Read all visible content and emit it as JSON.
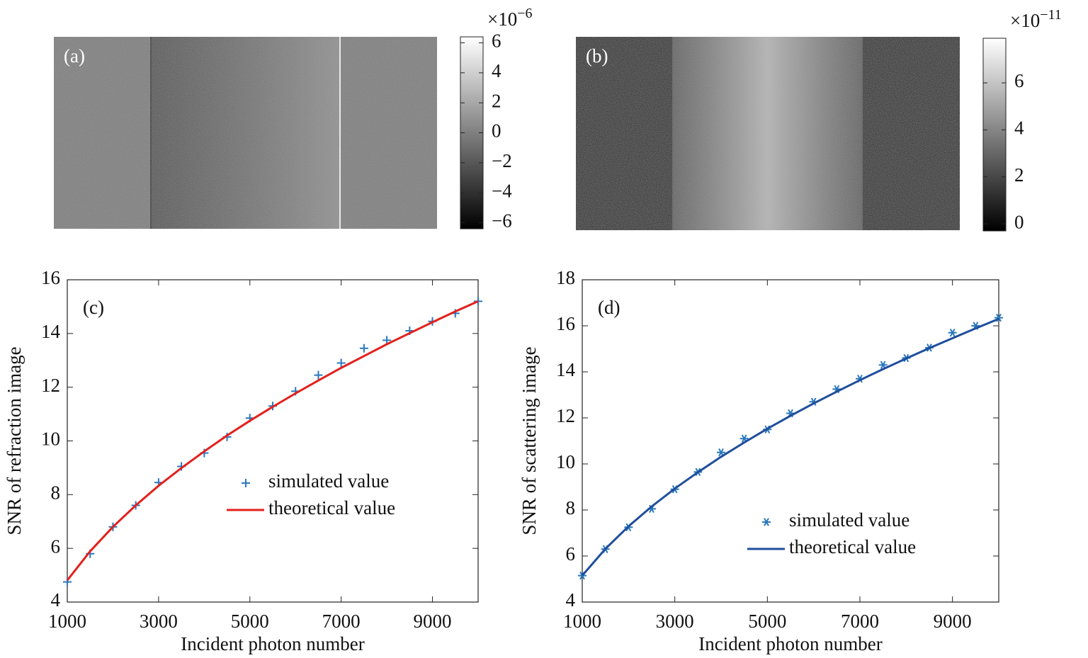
{
  "chart_data": [
    {
      "type": "image",
      "annotation": "(a)",
      "colorbar": {
        "lim": [
          -6.4,
          6.4
        ],
        "multiplier": "×10",
        "exponent": "−6",
        "ticks": [
          {
            "value": -6,
            "label": "−6"
          },
          {
            "value": -4,
            "label": "−4"
          },
          {
            "value": -2,
            "label": "−2"
          },
          0,
          2,
          4,
          6
        ]
      }
    },
    {
      "type": "image",
      "annotation": "(b)",
      "colorbar": {
        "lim": [
          -0.3,
          7.9
        ],
        "multiplier": "×10",
        "exponent": "−11",
        "ticks": [
          0,
          2,
          4,
          6
        ]
      }
    },
    {
      "type": "line",
      "annotation": "(c)",
      "xlabel": "Incident photon number",
      "ylabel": "SNR of refraction image",
      "x": [
        1000,
        1500,
        2000,
        2500,
        3000,
        3500,
        4000,
        4500,
        5000,
        5500,
        6000,
        6500,
        7000,
        7500,
        8000,
        8500,
        9000,
        9500,
        10000
      ],
      "series": [
        {
          "name": "simulated value",
          "color": "#2a78be",
          "marker": "plus",
          "values": [
            4.75,
            5.8,
            6.8,
            7.6,
            8.45,
            9.05,
            9.55,
            10.15,
            10.85,
            11.3,
            11.85,
            12.45,
            12.9,
            13.45,
            13.75,
            14.1,
            14.45,
            14.75,
            15.2
          ]
        },
        {
          "name": "theoretical value",
          "color": "#e3211c",
          "marker": "line",
          "values": [
            4.81,
            5.89,
            6.8,
            7.6,
            8.33,
            8.99,
            9.61,
            10.2,
            10.75,
            11.27,
            11.77,
            12.25,
            12.72,
            13.16,
            13.6,
            14.01,
            14.42,
            14.82,
            15.2
          ]
        }
      ],
      "xlim": [
        1000,
        10000
      ],
      "xticks": [
        1000,
        3000,
        5000,
        7000,
        9000
      ],
      "ylim": [
        4,
        16
      ],
      "yticks": [
        4,
        6,
        8,
        10,
        12,
        14,
        16
      ],
      "legend": "lower right"
    },
    {
      "type": "line",
      "annotation": "(d)",
      "xlabel": "Incident photon number",
      "ylabel": "SNR of scattering image",
      "x": [
        1000,
        1500,
        2000,
        2500,
        3000,
        3500,
        4000,
        4500,
        5000,
        5500,
        6000,
        6500,
        7000,
        7500,
        8000,
        8500,
        9000,
        9500,
        10000
      ],
      "series": [
        {
          "name": "simulated value",
          "color": "#2a78be",
          "marker": "asterisk",
          "values": [
            5.15,
            6.3,
            7.25,
            8.05,
            8.9,
            9.65,
            10.5,
            11.1,
            11.5,
            12.2,
            12.7,
            13.25,
            13.7,
            14.3,
            14.6,
            15.05,
            15.7,
            16.0,
            16.35
          ]
        },
        {
          "name": "theoretical value",
          "color": "#1f4e9c",
          "marker": "line",
          "values": [
            5.15,
            6.31,
            7.29,
            8.15,
            8.93,
            9.64,
            10.31,
            10.93,
            11.53,
            12.09,
            12.63,
            13.14,
            13.64,
            14.12,
            14.58,
            15.03,
            15.46,
            15.89,
            16.3
          ]
        }
      ],
      "xlim": [
        1000,
        10000
      ],
      "xticks": [
        1000,
        3000,
        5000,
        7000,
        9000
      ],
      "ylim": [
        4,
        18
      ],
      "yticks": [
        4,
        6,
        8,
        10,
        12,
        14,
        16,
        18
      ],
      "legend": "lower right"
    }
  ]
}
